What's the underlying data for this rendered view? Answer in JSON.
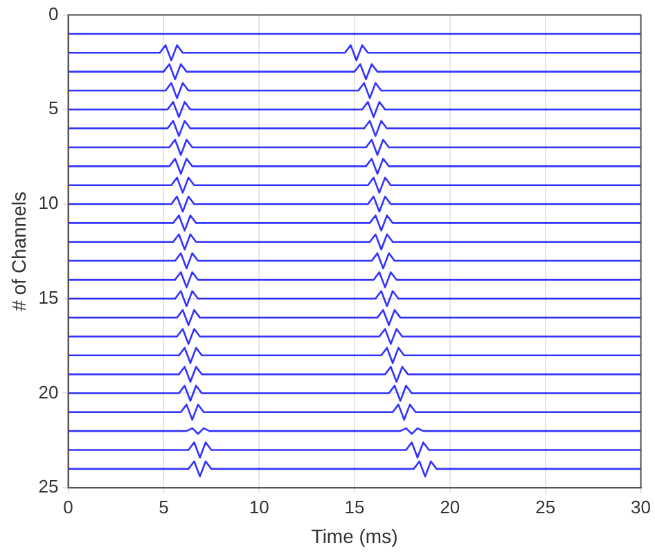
{
  "chart_data": {
    "type": "line",
    "xlabel": "Time (ms)",
    "ylabel": "# of Channels",
    "xlim": [
      0,
      30
    ],
    "xticks": [
      0,
      5,
      10,
      15,
      20,
      25,
      30
    ],
    "ylim": [
      25,
      0
    ],
    "yticks": [
      0,
      5,
      10,
      15,
      20,
      25
    ],
    "grid": true,
    "series": [
      {
        "color": "#0000ff",
        "x": [
          0,
          30
        ],
        "values": [
          1,
          1
        ]
      },
      {
        "color": "#0000ff",
        "x": [
          0,
          4.8,
          5.1,
          5.4,
          5.7,
          6.0,
          14.5,
          14.8,
          15.1,
          15.4,
          15.7,
          30
        ],
        "values": [
          2,
          2,
          1.6,
          2.4,
          1.6,
          2,
          2,
          1.6,
          2.4,
          1.6,
          2,
          2
        ]
      },
      {
        "color": "#0000ff",
        "x": [
          0,
          5.0,
          5.3,
          5.6,
          5.9,
          6.2,
          15.0,
          15.3,
          15.6,
          15.9,
          16.2,
          30
        ],
        "values": [
          3,
          3,
          2.6,
          3.4,
          2.6,
          3,
          3,
          2.6,
          3.4,
          2.6,
          3,
          3
        ]
      },
      {
        "color": "#0000ff",
        "x": [
          0,
          5.1,
          5.4,
          5.7,
          6.0,
          6.3,
          15.2,
          15.5,
          15.8,
          16.1,
          16.4,
          30
        ],
        "values": [
          4,
          4,
          3.6,
          4.4,
          3.6,
          4,
          4,
          3.6,
          4.4,
          3.6,
          4,
          4
        ]
      },
      {
        "color": "#0000ff",
        "x": [
          0,
          5.2,
          5.5,
          5.8,
          6.1,
          6.4,
          15.4,
          15.7,
          16.0,
          16.3,
          16.6,
          30
        ],
        "values": [
          5,
          5,
          4.6,
          5.4,
          4.6,
          5,
          5,
          4.6,
          5.4,
          4.6,
          5,
          5
        ]
      },
      {
        "color": "#0000ff",
        "x": [
          0,
          5.2,
          5.5,
          5.8,
          6.1,
          6.4,
          15.5,
          15.8,
          16.1,
          16.4,
          16.7,
          30
        ],
        "values": [
          6,
          6,
          5.6,
          6.4,
          5.6,
          6,
          6,
          5.6,
          6.4,
          5.6,
          6,
          6
        ]
      },
      {
        "color": "#0000ff",
        "x": [
          0,
          5.3,
          5.6,
          5.9,
          6.2,
          6.5,
          15.6,
          15.9,
          16.2,
          16.5,
          16.8,
          30
        ],
        "values": [
          7,
          7,
          6.6,
          7.4,
          6.6,
          7,
          7,
          6.6,
          7.4,
          6.6,
          7,
          7
        ]
      },
      {
        "color": "#0000ff",
        "x": [
          0,
          5.3,
          5.6,
          5.9,
          6.2,
          6.5,
          15.6,
          15.9,
          16.2,
          16.5,
          16.8,
          30
        ],
        "values": [
          8,
          8,
          7.6,
          8.4,
          7.6,
          8,
          8,
          7.6,
          8.4,
          7.6,
          8,
          8
        ]
      },
      {
        "color": "#0000ff",
        "x": [
          0,
          5.4,
          5.7,
          6.0,
          6.3,
          6.6,
          15.7,
          16.0,
          16.3,
          16.6,
          16.9,
          30
        ],
        "values": [
          9,
          9,
          8.6,
          9.4,
          8.6,
          9,
          9,
          8.6,
          9.4,
          8.6,
          9,
          9
        ]
      },
      {
        "color": "#0000ff",
        "x": [
          0,
          5.4,
          5.7,
          6.0,
          6.3,
          6.6,
          15.7,
          16.0,
          16.3,
          16.6,
          16.9,
          30
        ],
        "values": [
          10,
          10,
          9.6,
          10.4,
          9.6,
          10,
          10,
          9.6,
          10.4,
          9.6,
          10,
          10
        ]
      },
      {
        "color": "#0000ff",
        "x": [
          0,
          5.5,
          5.8,
          6.1,
          6.4,
          6.7,
          15.8,
          16.1,
          16.4,
          16.7,
          17.0,
          30
        ],
        "values": [
          11,
          11,
          10.6,
          11.4,
          10.6,
          11,
          11,
          10.6,
          11.4,
          10.6,
          11,
          11
        ]
      },
      {
        "color": "#0000ff",
        "x": [
          0,
          5.5,
          5.8,
          6.1,
          6.4,
          6.7,
          15.8,
          16.1,
          16.4,
          16.7,
          17.0,
          30
        ],
        "values": [
          12,
          12,
          11.6,
          12.4,
          11.6,
          12,
          12,
          11.6,
          12.4,
          11.6,
          12,
          12
        ]
      },
      {
        "color": "#0000ff",
        "x": [
          0,
          5.6,
          5.9,
          6.2,
          6.5,
          6.8,
          15.9,
          16.2,
          16.5,
          16.8,
          17.1,
          30
        ],
        "values": [
          13,
          13,
          12.6,
          13.4,
          12.6,
          13,
          13,
          12.6,
          13.4,
          12.6,
          13,
          13
        ]
      },
      {
        "color": "#0000ff",
        "x": [
          0,
          5.6,
          5.9,
          6.2,
          6.5,
          6.8,
          16.0,
          16.3,
          16.6,
          16.9,
          17.2,
          30
        ],
        "values": [
          14,
          14,
          13.6,
          14.4,
          13.6,
          14,
          14,
          13.6,
          14.4,
          13.6,
          14,
          14
        ]
      },
      {
        "color": "#0000ff",
        "x": [
          0,
          5.6,
          5.9,
          6.2,
          6.5,
          6.8,
          16.1,
          16.4,
          16.7,
          17.0,
          17.3,
          30
        ],
        "values": [
          15,
          15,
          14.6,
          15.4,
          14.6,
          15,
          15,
          14.6,
          15.4,
          14.6,
          15,
          15
        ]
      },
      {
        "color": "#0000ff",
        "x": [
          0,
          5.7,
          6.0,
          6.3,
          6.6,
          6.9,
          16.2,
          16.5,
          16.8,
          17.1,
          17.4,
          30
        ],
        "values": [
          16,
          16,
          15.6,
          16.4,
          15.6,
          16,
          16,
          15.6,
          16.4,
          15.6,
          16,
          16
        ]
      },
      {
        "color": "#0000ff",
        "x": [
          0,
          5.7,
          6.0,
          6.3,
          6.6,
          6.9,
          16.3,
          16.6,
          16.9,
          17.2,
          17.5,
          30
        ],
        "values": [
          17,
          17,
          16.6,
          17.4,
          16.6,
          17,
          17,
          16.6,
          17.4,
          16.6,
          17,
          17
        ]
      },
      {
        "color": "#0000ff",
        "x": [
          0,
          5.8,
          6.1,
          6.4,
          6.7,
          7.0,
          16.4,
          16.7,
          17.0,
          17.3,
          17.6,
          30
        ],
        "values": [
          18,
          18,
          17.6,
          18.4,
          17.6,
          18,
          18,
          17.6,
          18.4,
          17.6,
          18,
          18
        ]
      },
      {
        "color": "#0000ff",
        "x": [
          0,
          5.8,
          6.1,
          6.4,
          6.7,
          7.0,
          16.6,
          16.9,
          17.2,
          17.5,
          17.8,
          30
        ],
        "values": [
          19,
          19,
          18.6,
          19.4,
          18.6,
          19,
          19,
          18.6,
          19.4,
          18.6,
          19,
          19
        ]
      },
      {
        "color": "#0000ff",
        "x": [
          0,
          5.8,
          6.1,
          6.4,
          6.7,
          7.0,
          16.8,
          17.1,
          17.4,
          17.7,
          18.0,
          30
        ],
        "values": [
          20,
          20,
          19.6,
          20.4,
          19.6,
          20,
          20,
          19.6,
          20.4,
          19.6,
          20,
          20
        ]
      },
      {
        "color": "#0000ff",
        "x": [
          0,
          5.9,
          6.2,
          6.5,
          6.8,
          7.1,
          17.0,
          17.3,
          17.6,
          17.9,
          18.2,
          30
        ],
        "values": [
          21,
          21,
          20.6,
          21.4,
          20.6,
          21,
          21,
          20.6,
          21.4,
          20.6,
          21,
          21
        ]
      },
      {
        "color": "#0000ff",
        "x": [
          0,
          6.2,
          6.5,
          6.8,
          7.1,
          7.4,
          17.4,
          17.7,
          18.0,
          18.3,
          18.6,
          30
        ],
        "values": [
          22,
          22,
          21.85,
          22.15,
          21.85,
          22,
          22,
          21.85,
          22.15,
          21.85,
          22,
          22
        ]
      },
      {
        "color": "#0000ff",
        "x": [
          0,
          6.3,
          6.6,
          6.9,
          7.2,
          7.5,
          17.7,
          18.0,
          18.3,
          18.6,
          18.9,
          30
        ],
        "values": [
          23,
          23,
          22.6,
          23.4,
          22.6,
          23,
          23,
          22.6,
          23.4,
          22.6,
          23,
          23
        ]
      },
      {
        "color": "#0000ff",
        "x": [
          0,
          6.3,
          6.6,
          6.9,
          7.2,
          7.5,
          18.1,
          18.4,
          18.7,
          19.0,
          19.3,
          30
        ],
        "values": [
          24,
          24,
          23.6,
          24.4,
          23.6,
          24,
          24,
          23.6,
          24.4,
          23.6,
          24,
          24
        ]
      }
    ]
  }
}
